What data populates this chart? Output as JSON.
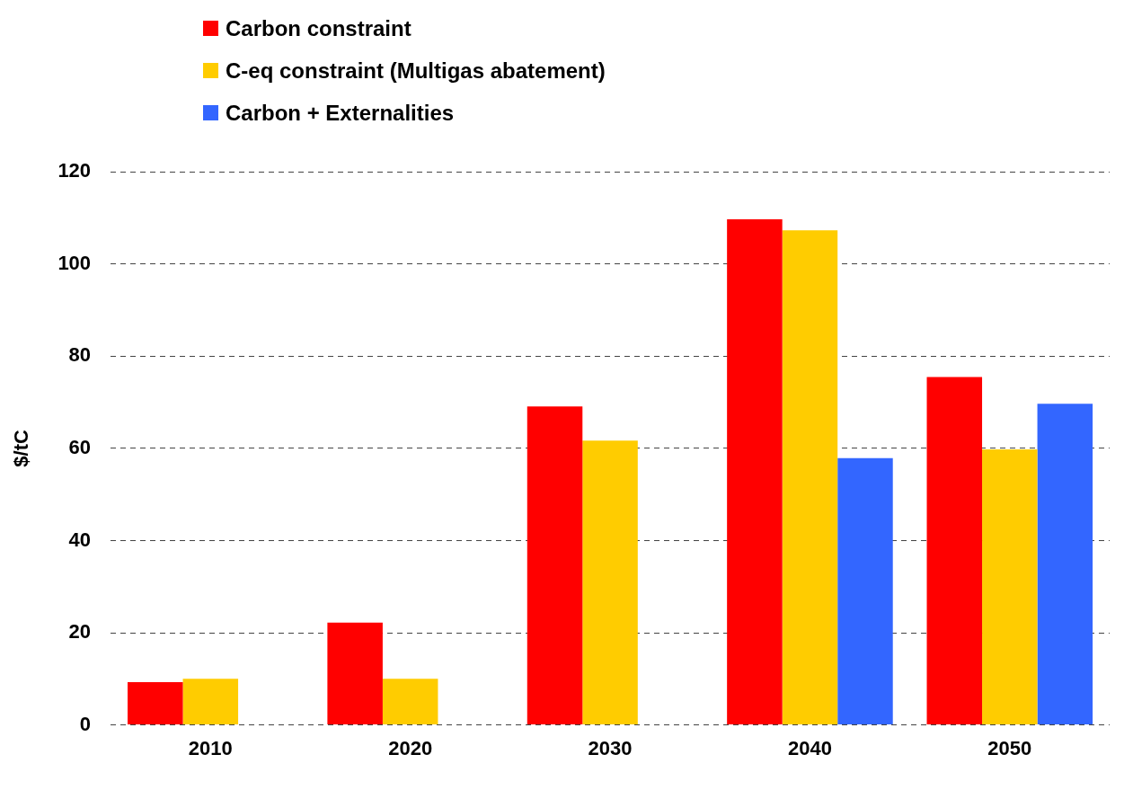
{
  "chart_data": {
    "type": "bar",
    "ylabel": "$/tC",
    "categories": [
      "2010",
      "2020",
      "2030",
      "2040",
      "2050"
    ],
    "series": [
      {
        "name": "Carbon constraint",
        "color": "#ff0000",
        "values": [
          9.3,
          22.2,
          69.1,
          109.7,
          75.5
        ]
      },
      {
        "name": "C-eq constraint (Multigas abatement)",
        "color": "#ffcc00",
        "values": [
          10,
          10,
          61.7,
          107.3,
          59.8
        ]
      },
      {
        "name": "Carbon + Externalities",
        "color": "#3366ff",
        "values": [
          null,
          null,
          null,
          57.9,
          69.7
        ]
      }
    ],
    "ylim": [
      0,
      120
    ],
    "yticks": [
      0,
      20,
      40,
      60,
      80,
      100,
      120
    ],
    "grid": "y",
    "legend": "top"
  }
}
